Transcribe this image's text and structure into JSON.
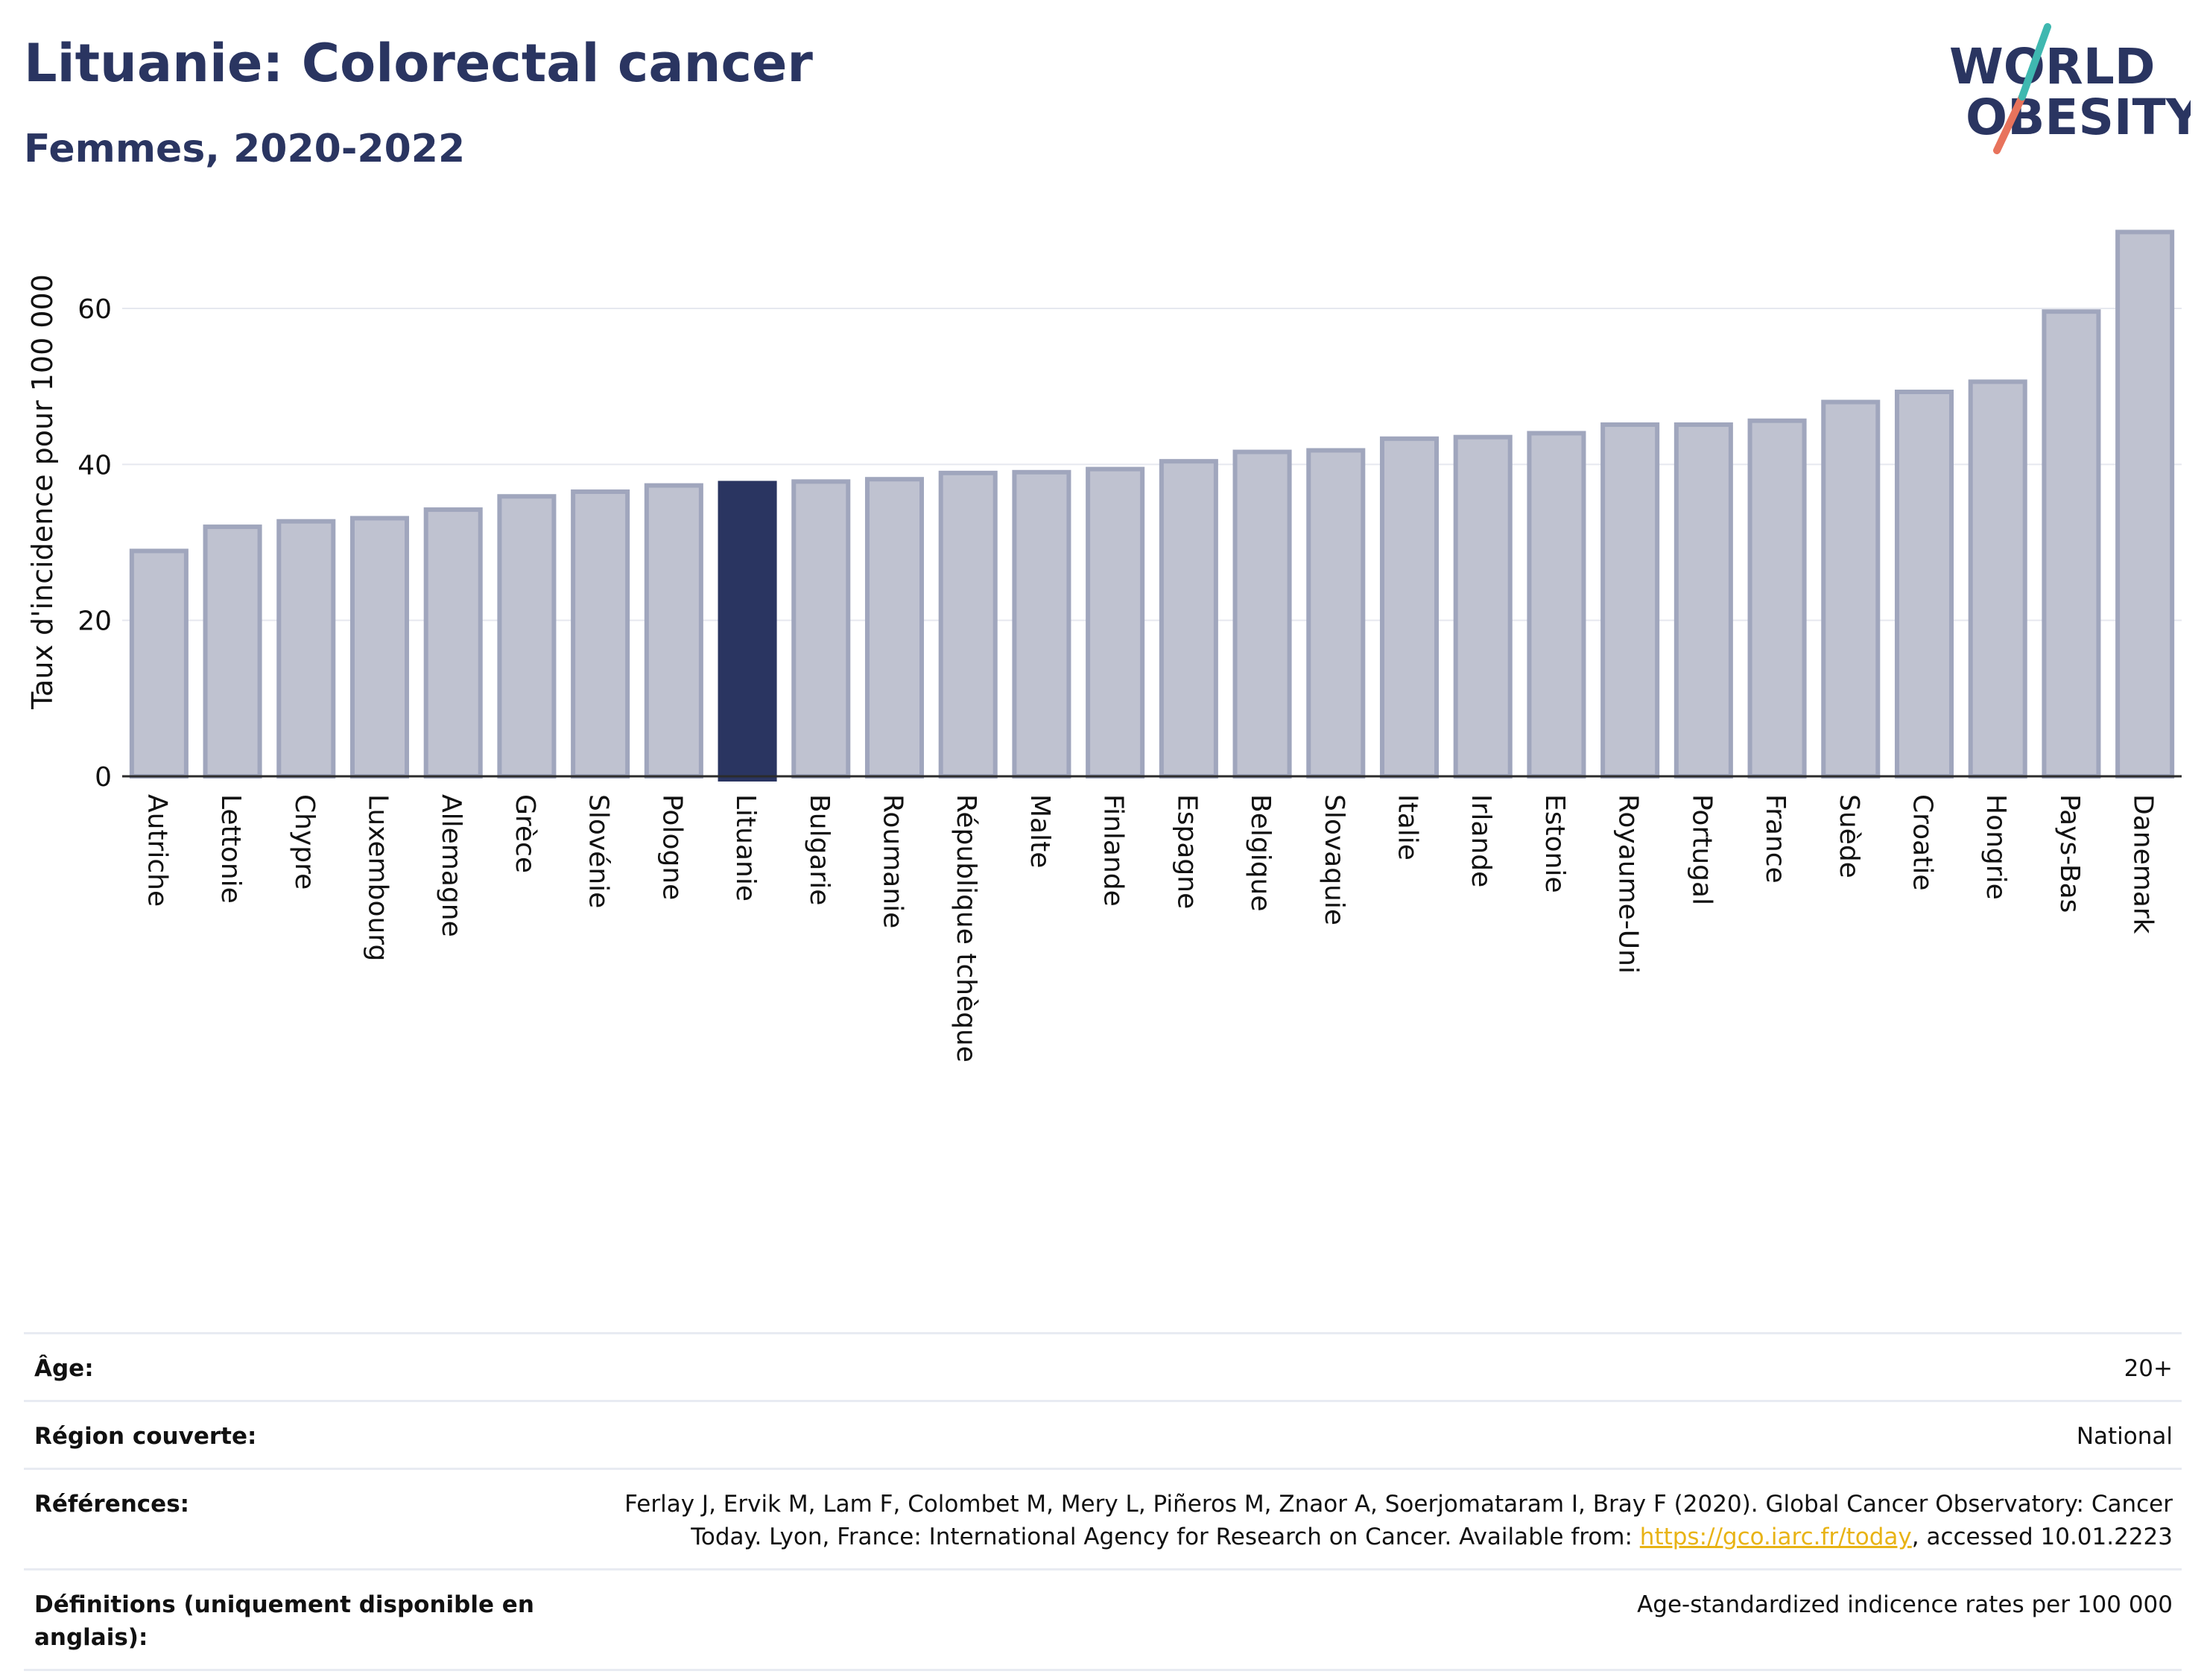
{
  "header": {
    "title": "Lituanie: Colorectal cancer",
    "subtitle": "Femmes, 2020-2022"
  },
  "logo": {
    "line1": "WORLD",
    "line2": "OBESITY"
  },
  "chart_data": {
    "type": "bar",
    "ylabel": "Taux d'incidence pour 100 000",
    "xlabel": "",
    "ylim": [
      0,
      70
    ],
    "yticks": [
      0,
      20,
      40,
      60
    ],
    "grid": true,
    "highlight": "Lituanie",
    "colors": {
      "bar": "#bfc2d0",
      "bar_edge": "#a0a6bd",
      "highlight": "#2a3561"
    },
    "categories": [
      "Autriche",
      "Lettonie",
      "Chypre",
      "Luxembourg",
      "Allemagne",
      "Grèce",
      "Slovénie",
      "Pologne",
      "Lituanie",
      "Bulgarie",
      "Roumanie",
      "République tchèque",
      "Malte",
      "Finlande",
      "Espagne",
      "Belgique",
      "Slovaquie",
      "Italie",
      "Irlande",
      "Estonie",
      "Royaume-Uni",
      "Portugal",
      "France",
      "Suède",
      "Croatie",
      "Hongrie",
      "Pays-Bas",
      "Danemark"
    ],
    "values": [
      28.9,
      32.0,
      32.7,
      33.1,
      34.2,
      35.9,
      36.5,
      37.3,
      37.6,
      37.8,
      38.1,
      38.9,
      39.0,
      39.4,
      40.4,
      41.6,
      41.8,
      43.3,
      43.5,
      44.0,
      45.1,
      45.1,
      45.6,
      48.0,
      49.3,
      50.6,
      59.6,
      69.8
    ]
  },
  "info": {
    "age_label": "Âge:",
    "age_value": "20+",
    "region_label": "Région couverte:",
    "region_value": "National",
    "refs_label": "Références:",
    "refs_line1": "Ferlay J, Ervik M, Lam F, Colombet M, Mery L, Piñeros M, Znaor A, Soerjomataram I, Bray F (2020). Global Cancer Observatory: Cancer",
    "refs_line2_pre": "Today. Lyon, France: International Agency for Research on Cancer. Available from: ",
    "refs_link": "https://gco.iarc.fr/today",
    "refs_line2_post": ", accessed 10.01.2223",
    "defs_label": "Définitions (uniquement disponible en anglais):",
    "defs_value": "Age-standardized indicence rates per 100 000"
  }
}
